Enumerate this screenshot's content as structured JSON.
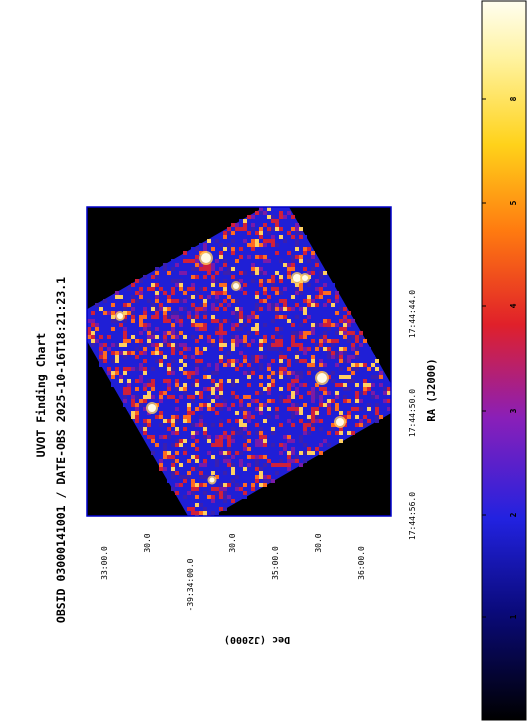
{
  "chart_data": {
    "type": "heatmap",
    "title": "UVOT Finding Chart",
    "subtitle": "OBSID 03000141001 / DATE-OBS 2025-10-16T18:21:23.1",
    "xlabel": "RA (J2000)",
    "ylabel": "Dec (J2000)",
    "x_ticks": [
      "17:44:56.0",
      "17:44:50.0",
      "17:44:44.0"
    ],
    "y_ticks": [
      "33:00.0",
      "30.0",
      "-39:34:00.0",
      "30.0",
      "35:00.0",
      "30.0",
      "36:00.0"
    ],
    "colorbar": {
      "colormap": "heat (black-blue-red-yellow-white)",
      "ticks": [
        "1",
        "2",
        "3",
        "4",
        "5",
        "8"
      ],
      "ticklabels": [
        "1",
        "2",
        "3",
        "4",
        "5",
        "8"
      ]
    },
    "bright_sources": 9,
    "grid": false,
    "colors": {
      "background": "#000000",
      "noise_low": "#1f1fd6",
      "noise_mid": "#d0203a",
      "noise_high": "#ffd060",
      "source": "#fffbe8",
      "frame": "#0000cc"
    }
  }
}
